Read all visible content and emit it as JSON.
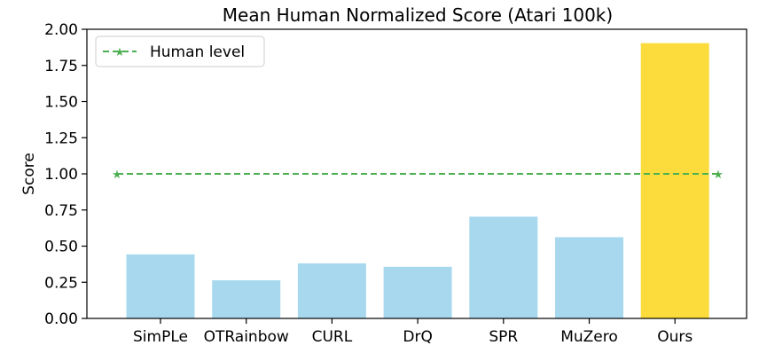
{
  "chart_data": {
    "type": "bar",
    "title": "Mean Human Normalized Score (Atari 100k)",
    "xlabel": "",
    "ylabel": "Score",
    "categories": [
      "SimPLe",
      "OTRainbow",
      "CURL",
      "DrQ",
      "SPR",
      "MuZero",
      "Ours"
    ],
    "values": [
      0.443,
      0.264,
      0.381,
      0.357,
      0.704,
      0.562,
      1.904
    ],
    "bar_colors": [
      "#a8d8ee",
      "#a8d8ee",
      "#a8d8ee",
      "#a8d8ee",
      "#a8d8ee",
      "#a8d8ee",
      "#fbdc3c"
    ],
    "ylim": [
      0,
      2.0
    ],
    "yticks": [
      "0.00",
      "0.25",
      "0.50",
      "0.75",
      "1.00",
      "1.25",
      "1.50",
      "1.75",
      "2.00"
    ],
    "reference_line": {
      "name": "Human level",
      "value": 1.0,
      "color": "#4caf50",
      "style": "dashed",
      "marker": "star"
    },
    "legend_position": "top-left",
    "grid": false
  }
}
